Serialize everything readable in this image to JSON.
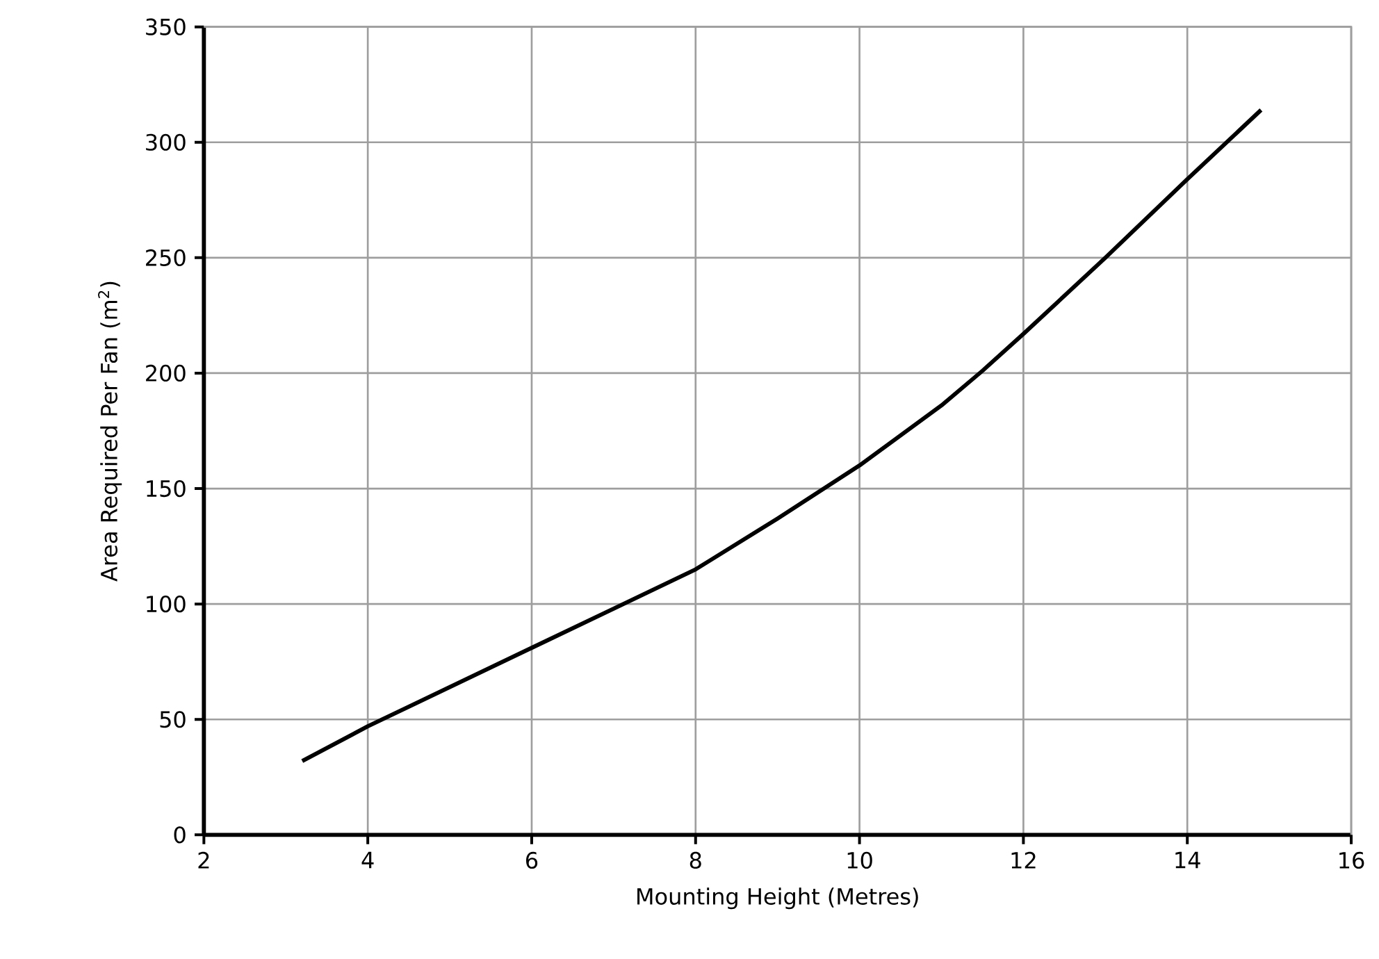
{
  "chart_data": {
    "type": "line",
    "xlabel": "Mounting Height (Metres)",
    "ylabel": "Area Required Per Fan (m$^{2}$)",
    "x": [
      3.2,
      4,
      5,
      6,
      7,
      8,
      9,
      10,
      11,
      11.5,
      12,
      13,
      14,
      14.9
    ],
    "series": [
      {
        "color": "#000000",
        "values": [
          32,
          47,
          64,
          81,
          98,
          115,
          137,
          160,
          186,
          201,
          217,
          250,
          284,
          314
        ]
      }
    ],
    "xlim": [
      2,
      16
    ],
    "ylim": [
      0,
      350
    ],
    "xticks": [
      2,
      4,
      6,
      8,
      10,
      12,
      14,
      16
    ],
    "yticks": [
      0,
      50,
      100,
      150,
      200,
      250,
      300,
      350
    ],
    "grid": true,
    "marker": "none",
    "line_style": "solid"
  }
}
